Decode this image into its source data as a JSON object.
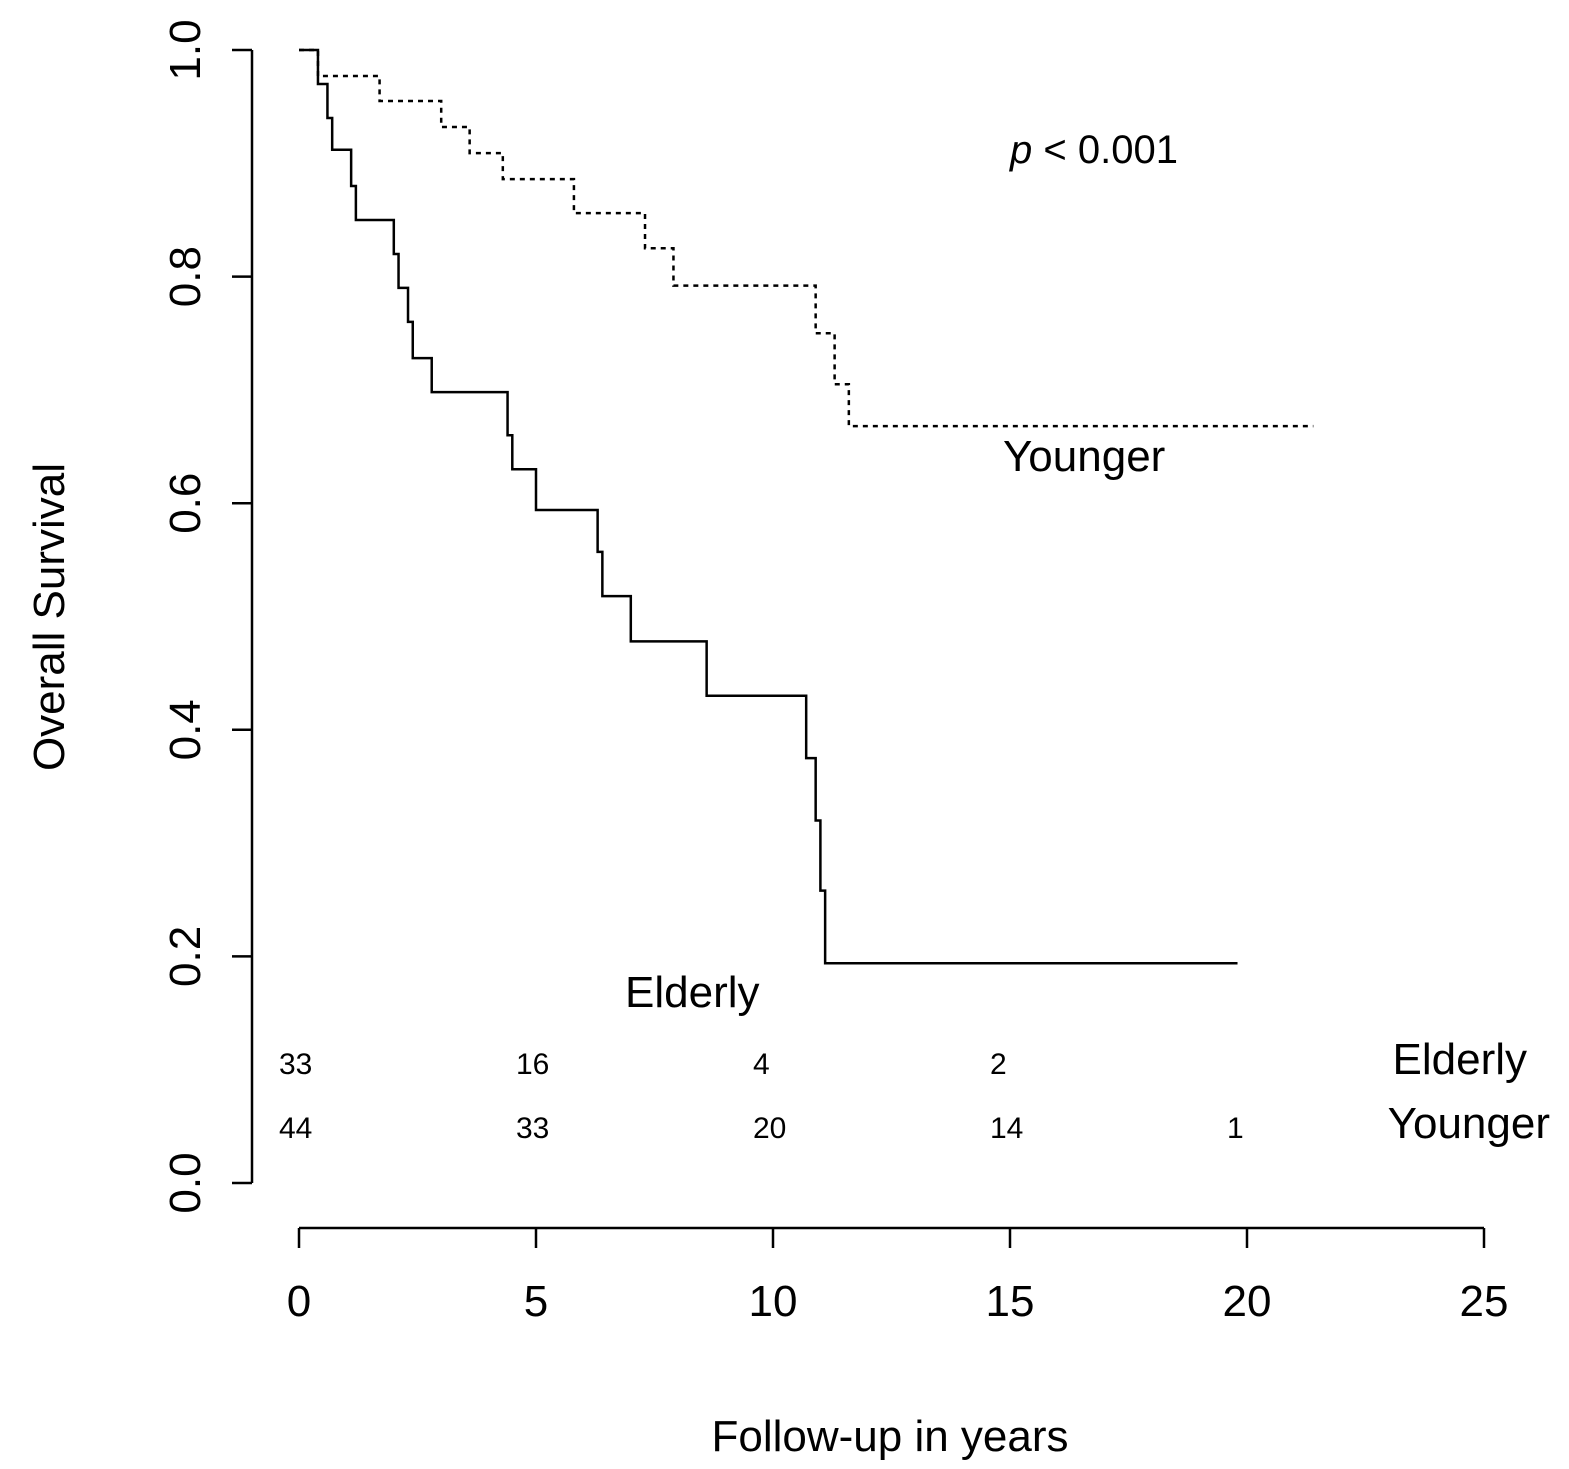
{
  "chart_data": {
    "type": "line",
    "title": "",
    "xlabel": "Follow-up in years",
    "ylabel": "Overall Survival",
    "xlim": [
      0,
      25
    ],
    "ylim": [
      0,
      1
    ],
    "xticks": [
      "0",
      "5",
      "10",
      "15",
      "20",
      "25"
    ],
    "yticks": [
      "0.0",
      "0.2",
      "0.4",
      "0.6",
      "0.8",
      "1.0"
    ],
    "annotation": {
      "italic": "p",
      "rest": " < 0.001"
    },
    "series": [
      {
        "name": "Younger",
        "style": "dotted",
        "label": "Younger",
        "points": [
          [
            0,
            1.0
          ],
          [
            0.4,
            0.977
          ],
          [
            1.7,
            0.955
          ],
          [
            3.0,
            0.932
          ],
          [
            3.6,
            0.909
          ],
          [
            4.3,
            0.886
          ],
          [
            5.8,
            0.856
          ],
          [
            7.3,
            0.825
          ],
          [
            7.9,
            0.792
          ],
          [
            10.9,
            0.75
          ],
          [
            11.3,
            0.705
          ],
          [
            11.6,
            0.668
          ],
          [
            21.4,
            0.668
          ]
        ]
      },
      {
        "name": "Elderly",
        "style": "solid",
        "label": "Elderly",
        "points": [
          [
            0,
            1.0
          ],
          [
            0.4,
            0.97
          ],
          [
            0.6,
            0.94
          ],
          [
            0.7,
            0.912
          ],
          [
            1.1,
            0.88
          ],
          [
            1.2,
            0.85
          ],
          [
            2.0,
            0.82
          ],
          [
            2.1,
            0.79
          ],
          [
            2.3,
            0.76
          ],
          [
            2.4,
            0.728
          ],
          [
            2.8,
            0.698
          ],
          [
            4.4,
            0.66
          ],
          [
            4.5,
            0.63
          ],
          [
            5.0,
            0.594
          ],
          [
            6.3,
            0.557
          ],
          [
            6.4,
            0.518
          ],
          [
            7.0,
            0.478
          ],
          [
            8.6,
            0.43
          ],
          [
            10.7,
            0.375
          ],
          [
            10.9,
            0.32
          ],
          [
            11.0,
            0.258
          ],
          [
            11.1,
            0.194
          ],
          [
            19.8,
            0.194
          ]
        ]
      }
    ],
    "risk_table": {
      "times": [
        0,
        5,
        10,
        15,
        20
      ],
      "rows": [
        {
          "label": "Elderly",
          "values": [
            "33",
            "16",
            "4",
            "2",
            ""
          ]
        },
        {
          "label": "Younger",
          "values": [
            "44",
            "33",
            "20",
            "14",
            "1"
          ]
        }
      ]
    }
  }
}
